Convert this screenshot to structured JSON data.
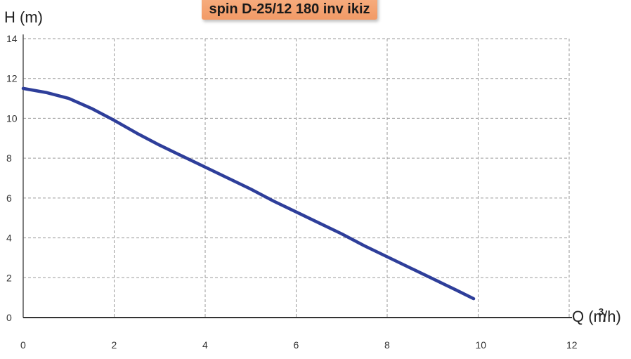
{
  "chart_data": {
    "type": "line",
    "title": "spin D-25/12 180 inv ikiz",
    "ylabel": "H (m)",
    "xlabel": "Q (m/h)",
    "xlabel_superscript": "3",
    "xlim": [
      0,
      12
    ],
    "ylim": [
      0,
      14
    ],
    "x_ticks": [
      "0",
      "2",
      "4",
      "6",
      "8",
      "10",
      "12"
    ],
    "y_ticks": [
      "0",
      "2",
      "4",
      "6",
      "8",
      "10",
      "12",
      "14"
    ],
    "grid": true,
    "series": [
      {
        "color": "#2e3e9a",
        "x": [
          0,
          0.5,
          1.0,
          1.5,
          2.0,
          2.5,
          3.0,
          3.5,
          4.0,
          4.5,
          5.0,
          5.5,
          6.0,
          6.5,
          7.0,
          7.5,
          8.0,
          8.5,
          9.0,
          9.5,
          9.9
        ],
        "y": [
          11.5,
          11.3,
          11.0,
          10.5,
          9.9,
          9.25,
          8.65,
          8.1,
          7.55,
          7.0,
          6.45,
          5.85,
          5.3,
          4.75,
          4.2,
          3.6,
          3.05,
          2.5,
          1.95,
          1.4,
          0.95
        ]
      }
    ]
  }
}
